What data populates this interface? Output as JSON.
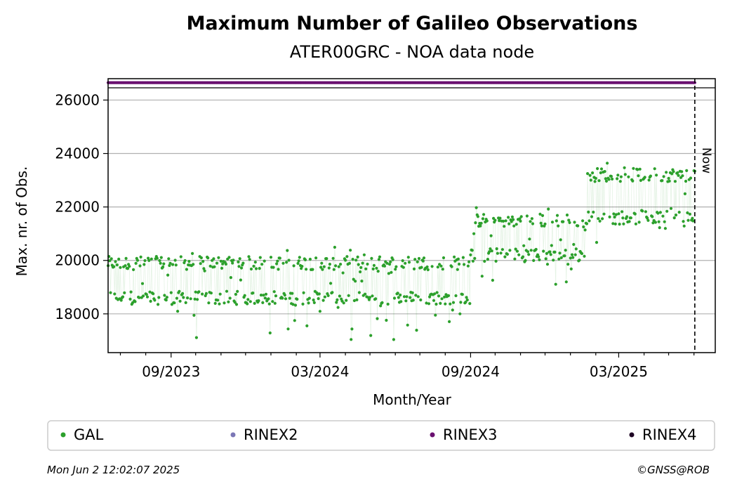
{
  "chart_data": {
    "type": "scatter",
    "title": "Maximum Number of Galileo Observations",
    "subtitle": "ATER00GRC - NOA data node",
    "xlabel": "Month/Year",
    "ylabel": "Max. nr. of Obs.",
    "x_tick_labels": [
      "09/2023",
      "03/2024",
      "09/2024",
      "03/2025"
    ],
    "y_ticks": [
      18000,
      20000,
      22000,
      24000,
      26000
    ],
    "ylim": [
      16550,
      26800
    ],
    "xlim": [
      "2023-06-16",
      "2025-06-27"
    ],
    "grid": "horizontal",
    "now_date": "2025-06-02",
    "now_label": "Now",
    "legend_position": "bottom",
    "legend": [
      {
        "name": "GAL",
        "color": "#2ca02c"
      },
      {
        "name": "RINEX2",
        "color": "#7b77b6"
      },
      {
        "name": "RINEX3",
        "color": "#6a1070"
      },
      {
        "name": "RINEX4",
        "color": "#1e0524"
      }
    ],
    "series": [
      {
        "name": "RINEX3",
        "color": "#6a1070",
        "start": "2023-06-16",
        "end": "2025-06-02",
        "value": 26650
      },
      {
        "name": "GAL",
        "color": "#2ca02c",
        "segments": [
          {
            "start": "2023-06-16",
            "end": "2024-08-31",
            "low": 18600,
            "high": 19900,
            "min": 17000,
            "max": 20500
          },
          {
            "start": "2024-09-01",
            "end": "2025-01-20",
            "low": 20200,
            "high": 21500,
            "min": 18950,
            "max": 22100
          },
          {
            "start": "2025-01-21",
            "end": "2025-06-02",
            "low": 21600,
            "high": 23200,
            "min": 20650,
            "max": 23900
          }
        ]
      }
    ]
  },
  "footer": {
    "timestamp": "Mon Jun  2 12:02:07 2025",
    "copyright": "©GNSS@ROB"
  }
}
